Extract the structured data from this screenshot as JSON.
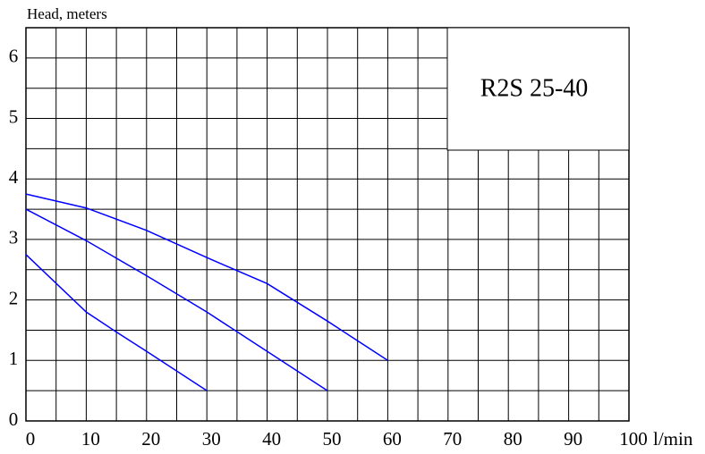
{
  "chart_data": {
    "type": "line",
    "ylabel": "Head, meters",
    "xlabel": "l/min",
    "annotation": "R2S  25-40",
    "series": [
      {
        "color": "#0000ff",
        "x": [
          0,
          10,
          20,
          30,
          40,
          50,
          60
        ],
        "values": [
          3.75,
          3.52,
          3.15,
          2.7,
          2.27,
          1.65,
          1.0
        ]
      },
      {
        "color": "#0000ff",
        "x": [
          0,
          10,
          20,
          30,
          40,
          50
        ],
        "values": [
          3.5,
          2.98,
          2.4,
          1.8,
          1.15,
          0.5
        ]
      },
      {
        "color": "#0000ff",
        "x": [
          0,
          10,
          15,
          20,
          30
        ],
        "values": [
          2.75,
          1.8,
          1.47,
          1.15,
          0.5
        ]
      }
    ],
    "xlim": [
      0,
      100
    ],
    "ylim": [
      0,
      6.5
    ],
    "xticks": [
      0,
      10,
      20,
      30,
      40,
      50,
      60,
      70,
      80,
      90,
      100
    ],
    "yticks": [
      0,
      1,
      2,
      3,
      4,
      5,
      6
    ],
    "xgrid": [
      5,
      10,
      15,
      20,
      25,
      30,
      35,
      40,
      45,
      50,
      55,
      60,
      65,
      70,
      75,
      80,
      85,
      90,
      95
    ],
    "ygrid": [
      0.5,
      1,
      1.5,
      2,
      2.5,
      3,
      3.5,
      4,
      4.5,
      5,
      5.5,
      6
    ],
    "grid": true
  }
}
